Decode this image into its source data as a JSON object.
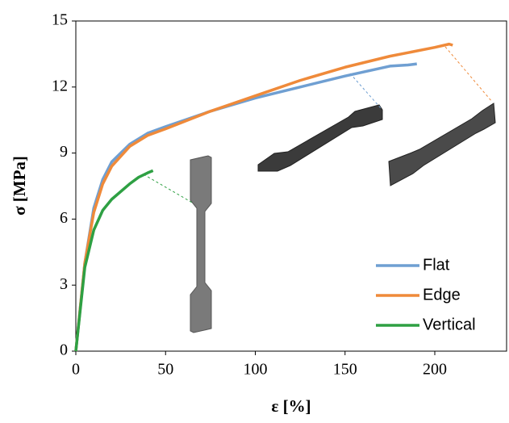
{
  "chart_data": {
    "type": "line",
    "x_label": "ε [%]",
    "y_label": "σ [MPa]",
    "xlim": [
      0,
      240
    ],
    "xticks": [
      0,
      50,
      100,
      150,
      200
    ],
    "ylim": [
      0,
      15
    ],
    "yticks": [
      0,
      3,
      6,
      9,
      12,
      15
    ],
    "legend": "lower right",
    "series": [
      {
        "name": "Flat",
        "color": "#6f9fd2",
        "x": [
          0,
          5,
          10,
          15,
          20,
          30,
          40,
          50,
          75,
          100,
          125,
          150,
          175,
          185,
          190
        ],
        "values": [
          0,
          4,
          6.5,
          7.8,
          8.6,
          9.4,
          9.9,
          10.2,
          10.9,
          11.5,
          12.0,
          12.5,
          12.95,
          13.0,
          13.05
        ]
      },
      {
        "name": "Edge",
        "color": "#ef8a3a",
        "x": [
          0,
          5,
          10,
          15,
          20,
          30,
          40,
          50,
          75,
          100,
          125,
          150,
          175,
          200,
          208,
          210
        ],
        "values": [
          0,
          4,
          6.3,
          7.6,
          8.4,
          9.3,
          9.8,
          10.1,
          10.9,
          11.6,
          12.3,
          12.9,
          13.4,
          13.8,
          13.95,
          13.9
        ]
      },
      {
        "name": "Vertical",
        "color": "#2ea043",
        "x": [
          0,
          5,
          10,
          15,
          20,
          30,
          35,
          40,
          43
        ],
        "values": [
          0,
          3.8,
          5.5,
          6.4,
          6.9,
          7.6,
          7.9,
          8.1,
          8.2
        ]
      }
    ]
  }
}
